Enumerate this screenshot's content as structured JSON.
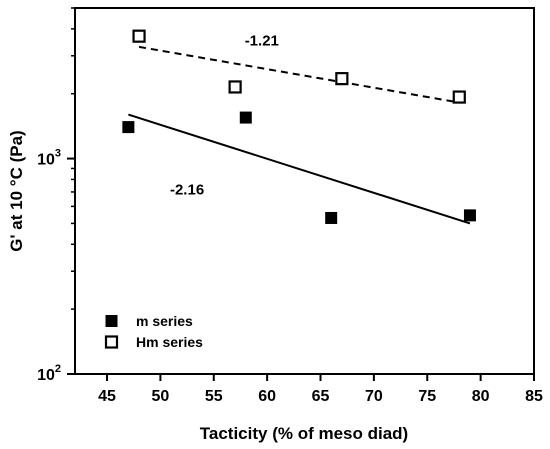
{
  "chart_data": {
    "type": "scatter",
    "title": "",
    "xlabel": "Tacticity (% of meso diad)",
    "ylabel": "G' at 10 °C (Pa)",
    "x_ticks": [
      "45",
      "50",
      "55",
      "60",
      "65",
      "70",
      "75",
      "80",
      "85"
    ],
    "x_tick_values": [
      45,
      50,
      55,
      60,
      65,
      70,
      75,
      80,
      85
    ],
    "xlim": [
      42,
      85
    ],
    "y_scale": "log",
    "ylim": [
      100,
      5000
    ],
    "y_ticks": [
      {
        "value": 100,
        "base": "10",
        "exp": "2"
      },
      {
        "value": 1000,
        "base": "10",
        "exp": "3"
      }
    ],
    "grid": false,
    "legend_position": "bottom-left",
    "series": [
      {
        "name": "m series",
        "marker": "filled-square",
        "color": "#000000",
        "points": [
          [
            47,
            1400
          ],
          [
            58,
            1550
          ],
          [
            66,
            530
          ],
          [
            79,
            545
          ]
        ],
        "trend": {
          "style": "solid",
          "from": [
            47,
            1600
          ],
          "to": [
            79,
            500
          ],
          "label": "-2.16",
          "label_at": [
            52.5,
            680
          ]
        }
      },
      {
        "name": "Hm series",
        "marker": "open-square",
        "color": "#000000",
        "points": [
          [
            48,
            3700
          ],
          [
            57,
            2150
          ],
          [
            67,
            2350
          ],
          [
            78,
            1930
          ]
        ],
        "trend": {
          "style": "dashed",
          "from": [
            48,
            3300
          ],
          "to": [
            78,
            1820
          ],
          "label": "-1.21",
          "label_at": [
            59.5,
            3350
          ]
        }
      }
    ]
  }
}
